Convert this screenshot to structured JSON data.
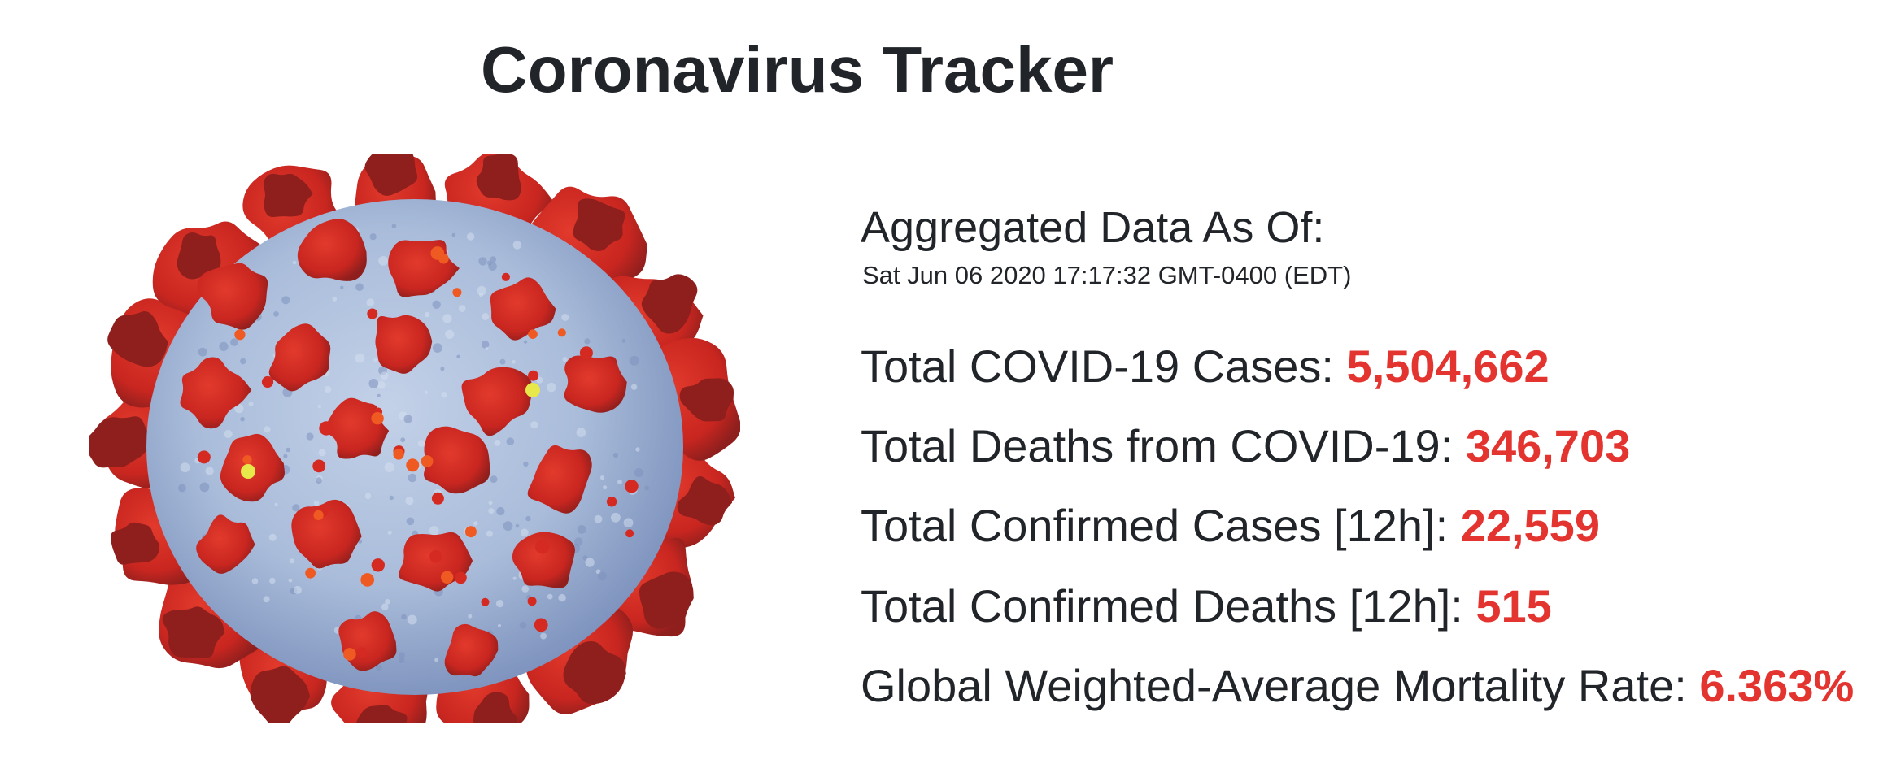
{
  "page": {
    "title": "Coronavirus Tracker"
  },
  "image": {
    "icon": "coronavirus-illustration",
    "colors": {
      "body": "#a9bcda",
      "body_shade": "#7d92bd",
      "spike": "#d42a22",
      "spike_dark": "#8f1f1d",
      "highlight": "#e7e84a"
    }
  },
  "snapshot": {
    "label": "Aggregated Data As Of:",
    "timestamp": "Sat Jun 06 2020 17:17:32 GMT-0400 (EDT)"
  },
  "stats": [
    {
      "label": "Total COVID-19 Cases: ",
      "value": "5,504,662"
    },
    {
      "label": "Total Deaths from COVID-19: ",
      "value": "346,703"
    },
    {
      "label": "Total Confirmed Cases [12h]: ",
      "value": "22,559"
    },
    {
      "label": "Total Confirmed Deaths [12h]: ",
      "value": "515"
    },
    {
      "label": "Global Weighted-Average Mortality Rate: ",
      "value": "6.363%"
    }
  ],
  "colors": {
    "text": "#212529",
    "accent": "#e3342f",
    "background": "#ffffff"
  }
}
